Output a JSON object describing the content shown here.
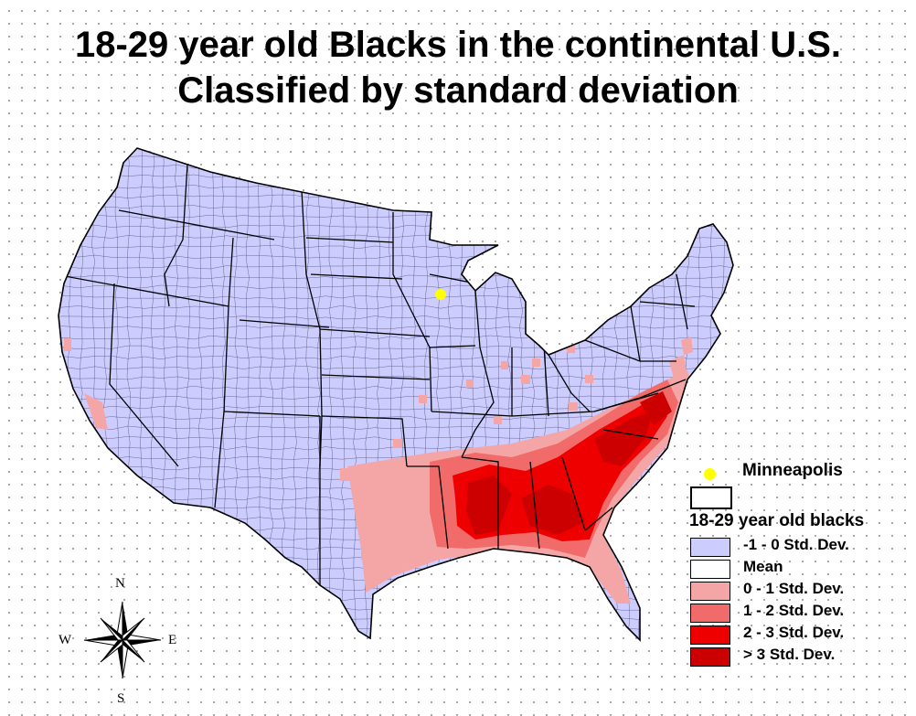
{
  "title": {
    "line1": "18-29 year old Blacks in the continental U.S.",
    "line2": "Classified by standard deviation"
  },
  "map": {
    "base_color": "#ccccff",
    "border_color": "#000000",
    "marker": {
      "name": "Minneapolis",
      "color": "#ffff00"
    }
  },
  "legend": {
    "marker_label": "Minneapolis",
    "title": "18-29 year old blacks",
    "classes": [
      {
        "label": "-1 - 0 Std. Dev.",
        "color": "#ccccff"
      },
      {
        "label": "Mean",
        "color": "#ffffff"
      },
      {
        "label": "0 - 1 Std. Dev.",
        "color": "#f4a6a6"
      },
      {
        "label": "1 - 2 Std. Dev.",
        "color": "#f26b6b"
      },
      {
        "label": "2 - 3 Std. Dev.",
        "color": "#ee0000"
      },
      {
        "label": "> 3 Std. Dev.",
        "color": "#cc0000"
      }
    ]
  },
  "compass": {
    "n": "N",
    "s": "S",
    "e": "E",
    "w": "W"
  }
}
